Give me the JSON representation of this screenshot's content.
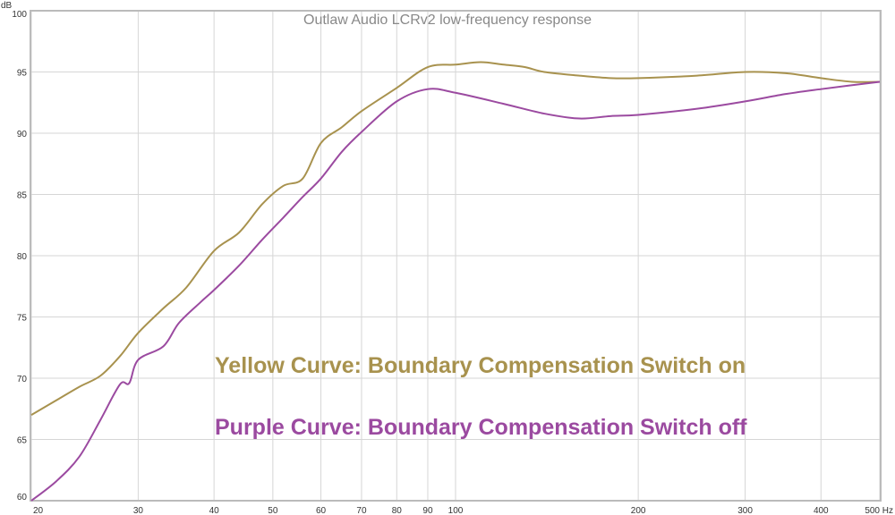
{
  "chart_data": {
    "type": "line",
    "title": "Outlaw Audio LCRv2 low-frequency response",
    "xlabel": "Hz",
    "ylabel": "dB",
    "xscale": "log",
    "xlim": [
      20,
      500
    ],
    "ylim": [
      60,
      100
    ],
    "grid": true,
    "x_ticks": [
      20,
      30,
      40,
      50,
      60,
      70,
      80,
      90,
      100,
      200,
      300,
      400,
      500
    ],
    "x_tick_labels": [
      "20",
      "30",
      "40",
      "50",
      "60",
      "70",
      "80",
      "90",
      "100",
      "200",
      "300",
      "400",
      "500 Hz"
    ],
    "y_ticks": [
      60,
      65,
      70,
      75,
      80,
      85,
      90,
      95,
      100
    ],
    "y_tick_labels": [
      "60",
      "65",
      "70",
      "75",
      "80",
      "85",
      "90",
      "95",
      "100"
    ],
    "series": [
      {
        "name": "Boundary Compensation Switch on",
        "color": "#a8924e",
        "x": [
          20,
          22,
          24,
          26,
          28,
          30,
          33,
          36,
          40,
          44,
          48,
          52,
          56,
          60,
          65,
          70,
          80,
          90,
          100,
          110,
          120,
          130,
          140,
          160,
          180,
          200,
          250,
          300,
          350,
          400,
          450,
          500
        ],
        "y": [
          67.0,
          68.2,
          69.3,
          70.2,
          71.8,
          73.7,
          75.7,
          77.4,
          80.4,
          81.9,
          84.2,
          85.7,
          86.3,
          89.2,
          90.5,
          91.8,
          93.7,
          95.4,
          95.6,
          95.8,
          95.6,
          95.4,
          95.0,
          94.7,
          94.5,
          94.5,
          94.7,
          95.0,
          94.9,
          94.5,
          94.2,
          94.2
        ]
      },
      {
        "name": "Boundary Compensation Switch off",
        "color": "#9b4aa0",
        "x": [
          20,
          22,
          24,
          26,
          28,
          29,
          30,
          33,
          35,
          38,
          40,
          44,
          48,
          52,
          56,
          60,
          65,
          70,
          80,
          90,
          100,
          120,
          140,
          160,
          180,
          200,
          250,
          300,
          350,
          400,
          500
        ],
        "y": [
          60.0,
          61.6,
          63.6,
          66.6,
          69.5,
          69.6,
          71.5,
          72.6,
          74.5,
          76.2,
          77.2,
          79.2,
          81.3,
          83.1,
          84.8,
          86.3,
          88.5,
          90.1,
          92.6,
          93.6,
          93.3,
          92.4,
          91.6,
          91.2,
          91.4,
          91.5,
          92.0,
          92.6,
          93.2,
          93.6,
          94.2
        ]
      }
    ],
    "annotations": [
      {
        "text": "Yellow Curve: Boundary Compensation Switch on",
        "color": "#a8924e"
      },
      {
        "text": "Purple Curve: Boundary Compensation Switch off",
        "color": "#9b4aa0"
      }
    ]
  }
}
